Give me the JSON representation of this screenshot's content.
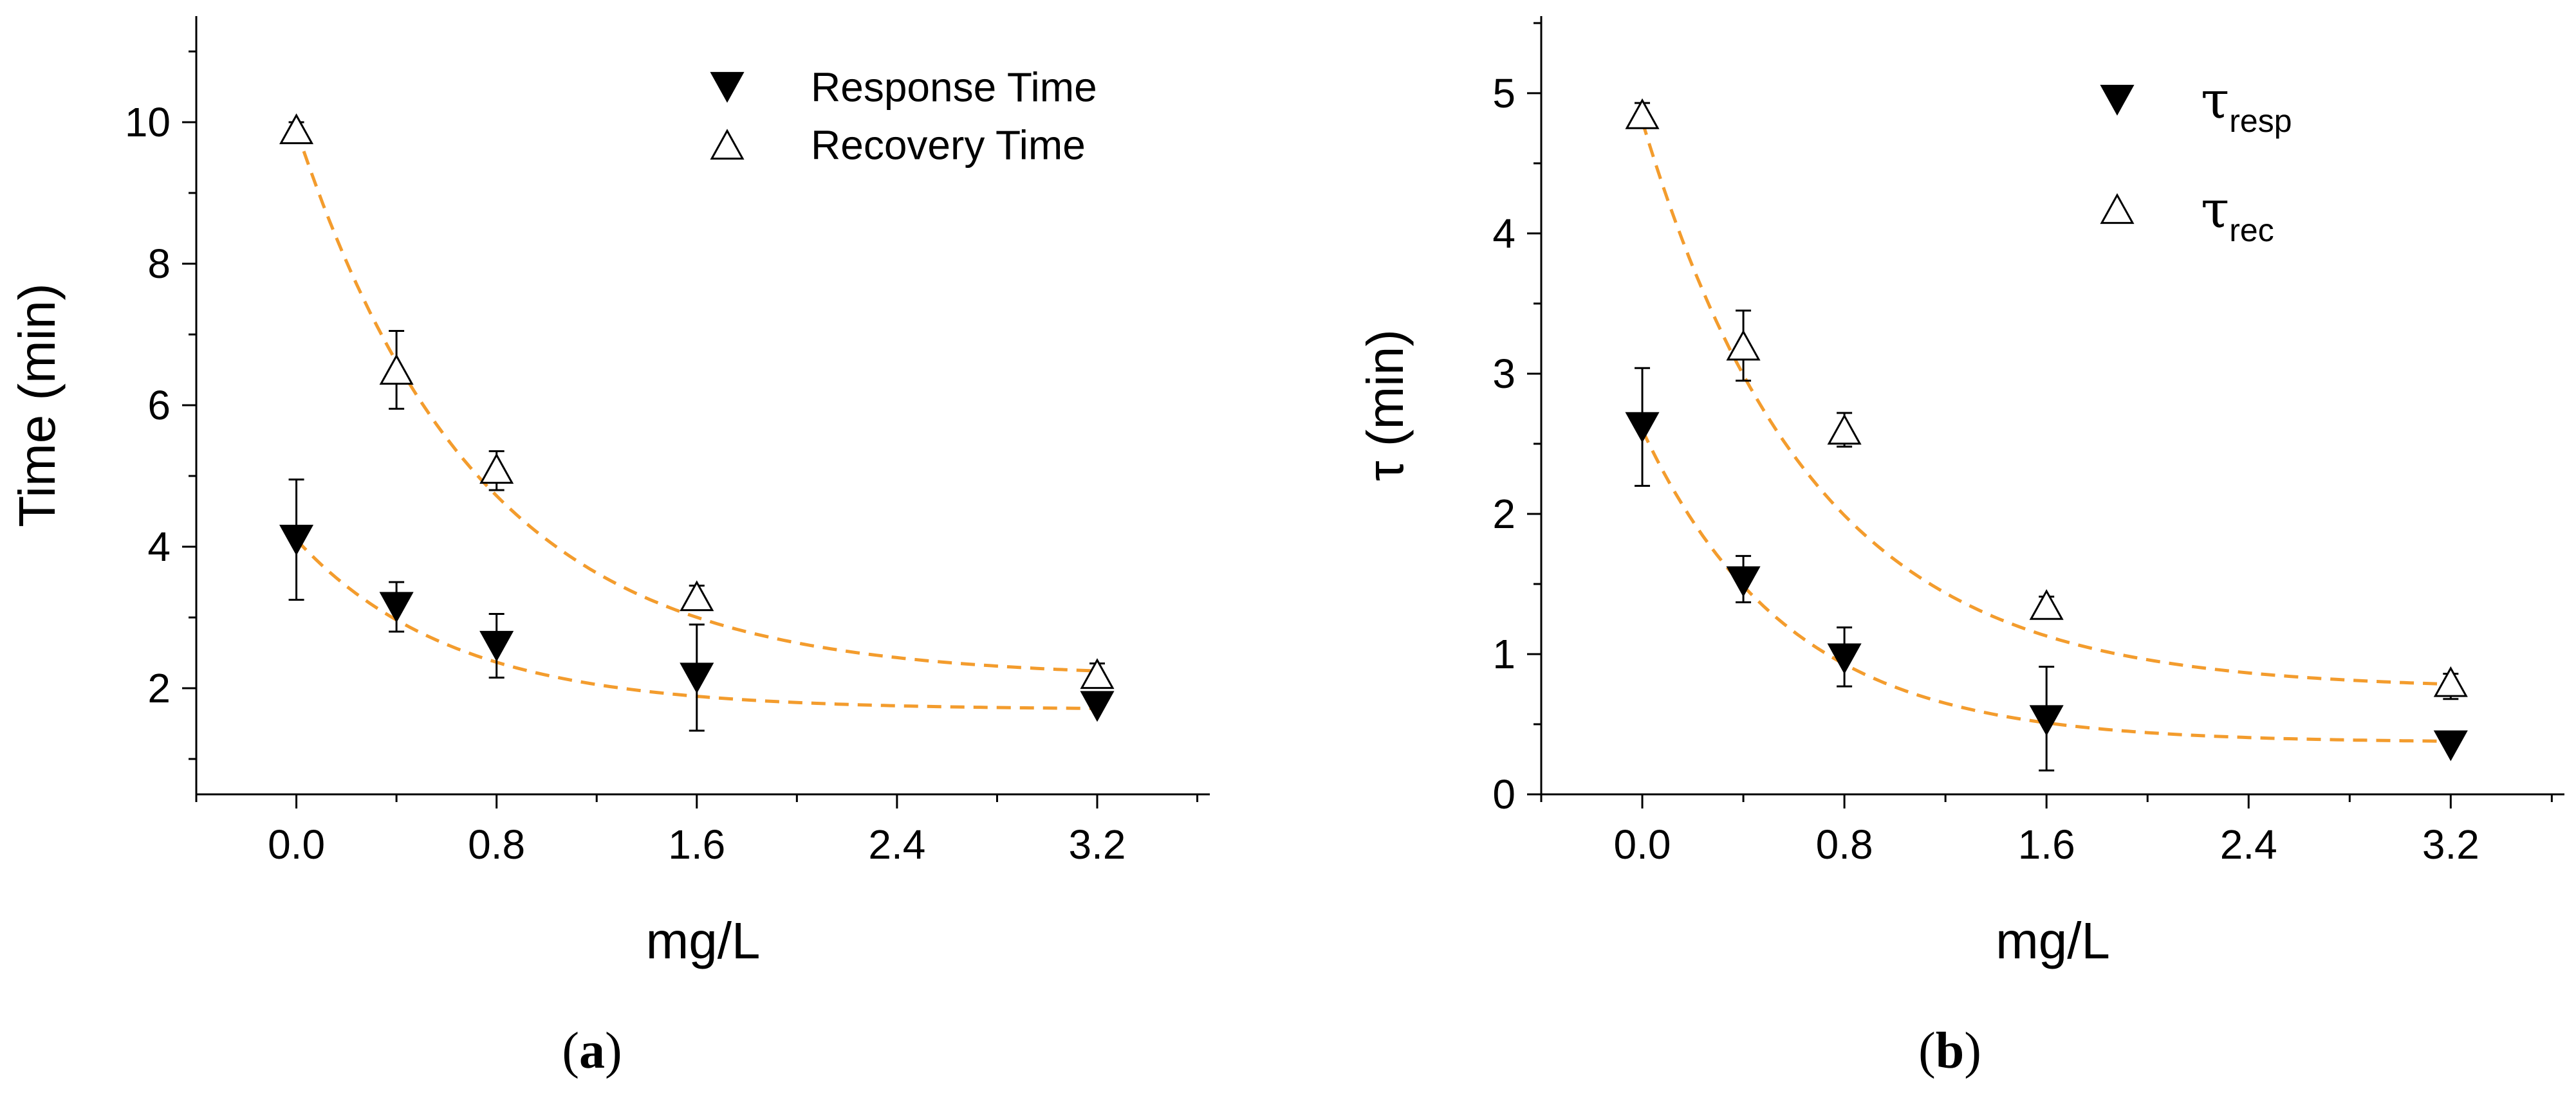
{
  "figure": {
    "panel_labels": [
      "(a)",
      "(b)"
    ]
  },
  "colors": {
    "fit_line": "#F39C2D",
    "axis": "#000000",
    "marker_fill": "#000000",
    "marker_open": "#ffffff"
  },
  "chart_data": [
    {
      "type": "scatter",
      "panel": "(a)",
      "title": "",
      "xlabel": "mg/L",
      "ylabel": "Time (min)",
      "xlim": [
        -0.4,
        3.65
      ],
      "ylim": [
        0.5,
        11.5
      ],
      "xticks": [
        0.0,
        0.8,
        1.6,
        2.4,
        3.2
      ],
      "xtick_labels": [
        "0.0",
        "0.8",
        "1.6",
        "2.4",
        "3.2"
      ],
      "yticks": [
        2,
        4,
        6,
        8,
        10
      ],
      "ytick_labels": [
        "2",
        "4",
        "6",
        "8",
        "10"
      ],
      "grid": false,
      "legend_position": "top-right",
      "series": [
        {
          "name": "Response Time",
          "legend_label": "Response Time",
          "marker": "filled-down-triangle",
          "x": [
            0.0,
            0.4,
            0.8,
            1.6,
            3.2
          ],
          "y": [
            4.1,
            3.15,
            2.6,
            2.15,
            1.75
          ],
          "err_upper": [
            0.85,
            0.35,
            0.45,
            0.75,
            0.0
          ],
          "err_lower": [
            0.85,
            0.35,
            0.45,
            0.75,
            0.0
          ],
          "fit": {
            "style": "dashed",
            "y0": 1.7,
            "A": 2.4,
            "k": 1.6
          }
        },
        {
          "name": "Recovery Time",
          "legend_label": "Recovery Time",
          "marker": "open-up-triangle",
          "x": [
            0.0,
            0.4,
            0.8,
            1.6,
            3.2
          ],
          "y": [
            9.9,
            6.5,
            5.1,
            3.3,
            2.2
          ],
          "err_upper": [
            0.1,
            0.55,
            0.25,
            0.15,
            0.15
          ],
          "err_lower": [
            0.1,
            0.55,
            0.3,
            0.15,
            0.15
          ],
          "fit": {
            "style": "dashed",
            "y0": 2.15,
            "A": 7.75,
            "k": 1.38
          }
        }
      ]
    },
    {
      "type": "scatter",
      "panel": "(b)",
      "title": "",
      "xlabel": "mg/L",
      "ylabel": "τ (min)",
      "xlim": [
        -0.4,
        3.65
      ],
      "ylim": [
        0,
        5.55
      ],
      "xticks": [
        0.0,
        0.8,
        1.6,
        2.4,
        3.2
      ],
      "xtick_labels": [
        "0.0",
        "0.8",
        "1.6",
        "2.4",
        "3.2"
      ],
      "yticks": [
        0,
        1,
        2,
        3,
        4,
        5
      ],
      "ytick_labels": [
        "0",
        "1",
        "2",
        "3",
        "4",
        "5"
      ],
      "grid": false,
      "legend_position": "top-right",
      "series": [
        {
          "name": "τ_resp",
          "legend_symbol": "τ",
          "legend_subscript": "resp",
          "marker": "filled-down-triangle",
          "x": [
            0.0,
            0.4,
            0.8,
            1.6,
            3.2
          ],
          "y": [
            2.62,
            1.52,
            0.97,
            0.53,
            0.35
          ],
          "err_upper": [
            0.42,
            0.18,
            0.22,
            0.38,
            0.0
          ],
          "err_lower": [
            0.42,
            0.15,
            0.2,
            0.36,
            0.0
          ],
          "fit": {
            "style": "dashed",
            "y0": 0.37,
            "A": 2.23,
            "k": 1.73
          }
        },
        {
          "name": "τ_rec",
          "legend_symbol": "τ",
          "legend_subscript": "rec",
          "marker": "open-up-triangle",
          "x": [
            0.0,
            0.4,
            0.8,
            1.6,
            3.2
          ],
          "y": [
            4.85,
            3.2,
            2.6,
            1.35,
            0.8
          ],
          "err_upper": [
            0.08,
            0.25,
            0.12,
            0.06,
            0.06
          ],
          "err_lower": [
            0.08,
            0.25,
            0.12,
            0.06,
            0.12
          ],
          "fit": {
            "style": "dashed",
            "y0": 0.75,
            "A": 4.05,
            "k": 1.48
          }
        }
      ]
    }
  ]
}
